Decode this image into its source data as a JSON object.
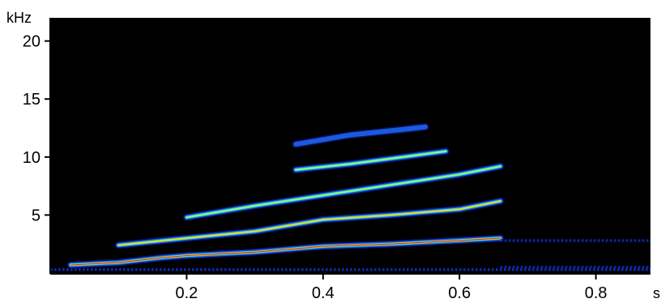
{
  "chart_data": {
    "type": "heatmap",
    "subtype": "spectrogram",
    "colormap": "jet-on-black",
    "background_color": "#000000",
    "x_unit": "s",
    "y_unit": "kHz",
    "xlim": [
      0,
      0.88
    ],
    "ylim": [
      0,
      22
    ],
    "x_ticks": [
      0.2,
      0.4,
      0.6,
      0.8
    ],
    "x_tick_labels": [
      "0.2",
      "0.4",
      "0.6",
      "0.8"
    ],
    "y_ticks": [
      5,
      10,
      15,
      20
    ],
    "y_tick_labels": [
      "5",
      "10",
      "15",
      "20"
    ],
    "grid": false,
    "harmonics": [
      {
        "harmonic": 1,
        "points": [
          [
            0.03,
            0.7
          ],
          [
            0.1,
            0.9
          ],
          [
            0.16,
            1.3
          ],
          [
            0.2,
            1.5
          ],
          [
            0.3,
            1.8
          ],
          [
            0.4,
            2.3
          ],
          [
            0.5,
            2.5
          ],
          [
            0.6,
            2.8
          ],
          [
            0.66,
            3.0
          ]
        ],
        "peak_intensity": 1.0
      },
      {
        "harmonic": 2,
        "points": [
          [
            0.1,
            2.4
          ],
          [
            0.2,
            3.0
          ],
          [
            0.3,
            3.6
          ],
          [
            0.4,
            4.6
          ],
          [
            0.5,
            5.0
          ],
          [
            0.6,
            5.5
          ],
          [
            0.66,
            6.2
          ]
        ],
        "peak_intensity": 0.85
      },
      {
        "harmonic": 3,
        "points": [
          [
            0.2,
            4.8
          ],
          [
            0.3,
            5.8
          ],
          [
            0.4,
            6.7
          ],
          [
            0.5,
            7.6
          ],
          [
            0.6,
            8.5
          ],
          [
            0.66,
            9.2
          ]
        ],
        "peak_intensity": 0.6
      },
      {
        "harmonic": 4,
        "points": [
          [
            0.36,
            8.9
          ],
          [
            0.44,
            9.4
          ],
          [
            0.53,
            10.1
          ],
          [
            0.58,
            10.5
          ]
        ],
        "peak_intensity": 0.6
      },
      {
        "harmonic": 5,
        "points": [
          [
            0.36,
            11.1
          ],
          [
            0.44,
            11.9
          ],
          [
            0.52,
            12.4
          ],
          [
            0.55,
            12.6
          ]
        ],
        "peak_intensity": 0.4
      }
    ],
    "noise_bands": [
      {
        "x_start": 0.0,
        "x_end": 0.88,
        "y": 0.3,
        "intensity": 0.45
      },
      {
        "x_start": 0.66,
        "x_end": 0.88,
        "y": 2.8,
        "intensity": 0.35
      },
      {
        "x_start": 0.66,
        "x_end": 0.88,
        "y": 0.5,
        "intensity": 0.4
      }
    ]
  }
}
